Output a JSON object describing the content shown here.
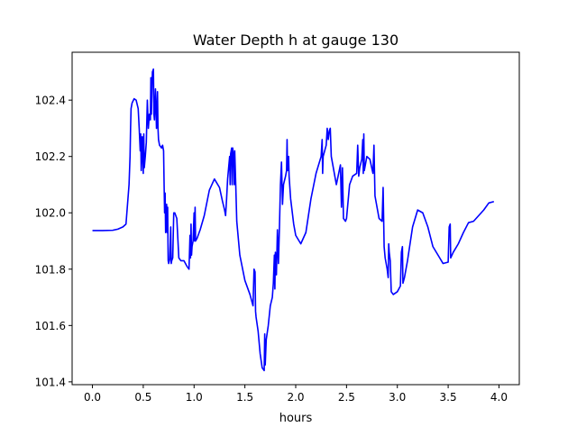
{
  "chart_data": {
    "type": "line",
    "title": "Water Depth h at gauge 130",
    "xlabel": "hours",
    "ylabel": "",
    "xlim": [
      -0.2,
      4.2
    ],
    "ylim": [
      101.39,
      102.57
    ],
    "xticks": [
      0.0,
      0.5,
      1.0,
      1.5,
      2.0,
      2.5,
      3.0,
      3.5,
      4.0
    ],
    "xtick_labels": [
      "0.0",
      "0.5",
      "1.0",
      "1.5",
      "2.0",
      "2.5",
      "3.0",
      "3.5",
      "4.0"
    ],
    "yticks": [
      101.4,
      101.6,
      101.8,
      102.0,
      102.2,
      102.4
    ],
    "ytick_labels": [
      "101.4",
      "101.6",
      "101.8",
      "102.0",
      "102.2",
      "102.4"
    ],
    "grid": false,
    "legend": "none",
    "series": [
      {
        "color": "#0000ff",
        "points": [
          [
            0.0,
            101.937
          ],
          [
            0.1,
            101.937
          ],
          [
            0.2,
            101.938
          ],
          [
            0.25,
            101.942
          ],
          [
            0.3,
            101.95
          ],
          [
            0.33,
            101.96
          ],
          [
            0.36,
            102.1
          ],
          [
            0.37,
            102.2
          ],
          [
            0.375,
            102.3
          ],
          [
            0.38,
            102.37
          ],
          [
            0.39,
            102.39
          ],
          [
            0.41,
            102.405
          ],
          [
            0.43,
            102.4
          ],
          [
            0.45,
            102.37
          ],
          [
            0.46,
            102.3
          ],
          [
            0.47,
            102.22
          ],
          [
            0.475,
            102.28
          ],
          [
            0.48,
            102.15
          ],
          [
            0.49,
            102.27
          ],
          [
            0.5,
            102.14
          ],
          [
            0.505,
            102.28
          ],
          [
            0.51,
            102.16
          ],
          [
            0.52,
            102.2
          ],
          [
            0.53,
            102.25
          ],
          [
            0.54,
            102.4
          ],
          [
            0.55,
            102.3
          ],
          [
            0.56,
            102.35
          ],
          [
            0.57,
            102.33
          ],
          [
            0.575,
            102.48
          ],
          [
            0.58,
            102.35
          ],
          [
            0.59,
            102.5
          ],
          [
            0.6,
            102.51
          ],
          [
            0.605,
            102.35
          ],
          [
            0.61,
            102.33
          ],
          [
            0.62,
            102.44
          ],
          [
            0.63,
            102.3
          ],
          [
            0.64,
            102.43
          ],
          [
            0.645,
            102.3
          ],
          [
            0.65,
            102.26
          ],
          [
            0.66,
            102.24
          ],
          [
            0.68,
            102.23
          ],
          [
            0.69,
            102.24
          ],
          [
            0.7,
            102.22
          ],
          [
            0.705,
            102.1
          ],
          [
            0.71,
            102.0
          ],
          [
            0.715,
            102.07
          ],
          [
            0.72,
            101.93
          ],
          [
            0.73,
            102.03
          ],
          [
            0.735,
            101.93
          ],
          [
            0.74,
            102.02
          ],
          [
            0.745,
            101.83
          ],
          [
            0.75,
            101.82
          ],
          [
            0.76,
            101.835
          ],
          [
            0.77,
            101.95
          ],
          [
            0.775,
            101.82
          ],
          [
            0.78,
            101.83
          ],
          [
            0.79,
            101.84
          ],
          [
            0.8,
            102.0
          ],
          [
            0.81,
            102.0
          ],
          [
            0.83,
            101.98
          ],
          [
            0.85,
            101.84
          ],
          [
            0.87,
            101.83
          ],
          [
            0.9,
            101.83
          ],
          [
            0.93,
            101.81
          ],
          [
            0.95,
            101.8
          ],
          [
            0.96,
            101.92
          ],
          [
            0.965,
            101.84
          ],
          [
            0.97,
            101.96
          ],
          [
            0.975,
            101.85
          ],
          [
            0.98,
            101.88
          ],
          [
            0.99,
            101.9
          ],
          [
            1.0,
            102.0
          ],
          [
            1.005,
            101.9
          ],
          [
            1.01,
            102.02
          ],
          [
            1.015,
            101.9
          ],
          [
            1.03,
            101.91
          ],
          [
            1.06,
            101.94
          ],
          [
            1.1,
            101.99
          ],
          [
            1.15,
            102.08
          ],
          [
            1.2,
            102.12
          ],
          [
            1.25,
            102.09
          ],
          [
            1.28,
            102.04
          ],
          [
            1.3,
            102.01
          ],
          [
            1.31,
            101.99
          ],
          [
            1.32,
            102.05
          ],
          [
            1.33,
            102.12
          ],
          [
            1.34,
            102.16
          ],
          [
            1.35,
            102.2
          ],
          [
            1.355,
            102.1
          ],
          [
            1.36,
            102.21
          ],
          [
            1.37,
            102.23
          ],
          [
            1.375,
            102.1
          ],
          [
            1.38,
            102.23
          ],
          [
            1.39,
            102.2
          ],
          [
            1.395,
            102.1
          ],
          [
            1.4,
            102.22
          ],
          [
            1.41,
            102.1
          ],
          [
            1.42,
            101.97
          ],
          [
            1.45,
            101.85
          ],
          [
            1.5,
            101.76
          ],
          [
            1.55,
            101.71
          ],
          [
            1.58,
            101.67
          ],
          [
            1.59,
            101.8
          ],
          [
            1.6,
            101.79
          ],
          [
            1.605,
            101.65
          ],
          [
            1.61,
            101.63
          ],
          [
            1.63,
            101.58
          ],
          [
            1.65,
            101.5
          ],
          [
            1.67,
            101.45
          ],
          [
            1.69,
            101.44
          ],
          [
            1.695,
            101.57
          ],
          [
            1.7,
            101.46
          ],
          [
            1.71,
            101.55
          ],
          [
            1.73,
            101.6
          ],
          [
            1.75,
            101.67
          ],
          [
            1.77,
            101.7
          ],
          [
            1.78,
            101.75
          ],
          [
            1.79,
            101.85
          ],
          [
            1.795,
            101.73
          ],
          [
            1.8,
            101.86
          ],
          [
            1.81,
            101.78
          ],
          [
            1.82,
            101.94
          ],
          [
            1.83,
            101.82
          ],
          [
            1.84,
            101.95
          ],
          [
            1.85,
            102.1
          ],
          [
            1.86,
            102.18
          ],
          [
            1.87,
            102.03
          ],
          [
            1.88,
            102.1
          ],
          [
            1.9,
            102.13
          ],
          [
            1.91,
            102.15
          ],
          [
            1.915,
            102.26
          ],
          [
            1.92,
            102.15
          ],
          [
            1.93,
            102.2
          ],
          [
            1.935,
            102.13
          ],
          [
            1.95,
            102.05
          ],
          [
            1.98,
            101.96
          ],
          [
            2.0,
            101.92
          ],
          [
            2.05,
            101.89
          ],
          [
            2.1,
            101.93
          ],
          [
            2.15,
            102.05
          ],
          [
            2.2,
            102.14
          ],
          [
            2.25,
            102.2
          ],
          [
            2.26,
            102.26
          ],
          [
            2.265,
            102.14
          ],
          [
            2.27,
            102.2
          ],
          [
            2.3,
            102.24
          ],
          [
            2.31,
            102.3
          ],
          [
            2.32,
            102.26
          ],
          [
            2.33,
            102.29
          ],
          [
            2.34,
            102.3
          ],
          [
            2.35,
            102.2
          ],
          [
            2.4,
            102.1
          ],
          [
            2.44,
            102.17
          ],
          [
            2.45,
            102.02
          ],
          [
            2.46,
            102.16
          ],
          [
            2.47,
            101.98
          ],
          [
            2.49,
            101.97
          ],
          [
            2.5,
            101.98
          ],
          [
            2.53,
            102.1
          ],
          [
            2.56,
            102.13
          ],
          [
            2.6,
            102.14
          ],
          [
            2.61,
            102.24
          ],
          [
            2.62,
            102.13
          ],
          [
            2.63,
            102.16
          ],
          [
            2.65,
            102.19
          ],
          [
            2.66,
            102.26
          ],
          [
            2.665,
            102.14
          ],
          [
            2.67,
            102.28
          ],
          [
            2.675,
            102.15
          ],
          [
            2.7,
            102.2
          ],
          [
            2.73,
            102.19
          ],
          [
            2.76,
            102.14
          ],
          [
            2.77,
            102.24
          ],
          [
            2.78,
            102.06
          ],
          [
            2.82,
            101.98
          ],
          [
            2.85,
            101.97
          ],
          [
            2.86,
            102.09
          ],
          [
            2.87,
            101.88
          ],
          [
            2.88,
            101.84
          ],
          [
            2.9,
            101.8
          ],
          [
            2.91,
            101.77
          ],
          [
            2.915,
            101.89
          ],
          [
            2.92,
            101.86
          ],
          [
            2.93,
            101.83
          ],
          [
            2.94,
            101.72
          ],
          [
            2.96,
            101.71
          ],
          [
            3.0,
            101.72
          ],
          [
            3.03,
            101.74
          ],
          [
            3.04,
            101.86
          ],
          [
            3.05,
            101.88
          ],
          [
            3.055,
            101.75
          ],
          [
            3.07,
            101.77
          ],
          [
            3.1,
            101.83
          ],
          [
            3.15,
            101.95
          ],
          [
            3.2,
            102.01
          ],
          [
            3.25,
            102.0
          ],
          [
            3.3,
            101.95
          ],
          [
            3.35,
            101.88
          ],
          [
            3.4,
            101.85
          ],
          [
            3.45,
            101.82
          ],
          [
            3.5,
            101.825
          ],
          [
            3.51,
            101.95
          ],
          [
            3.52,
            101.96
          ],
          [
            3.525,
            101.84
          ],
          [
            3.55,
            101.86
          ],
          [
            3.6,
            101.89
          ],
          [
            3.65,
            101.93
          ],
          [
            3.7,
            101.965
          ],
          [
            3.75,
            101.97
          ],
          [
            3.8,
            101.99
          ],
          [
            3.85,
            102.01
          ],
          [
            3.9,
            102.035
          ],
          [
            3.95,
            102.04
          ]
        ]
      }
    ]
  }
}
